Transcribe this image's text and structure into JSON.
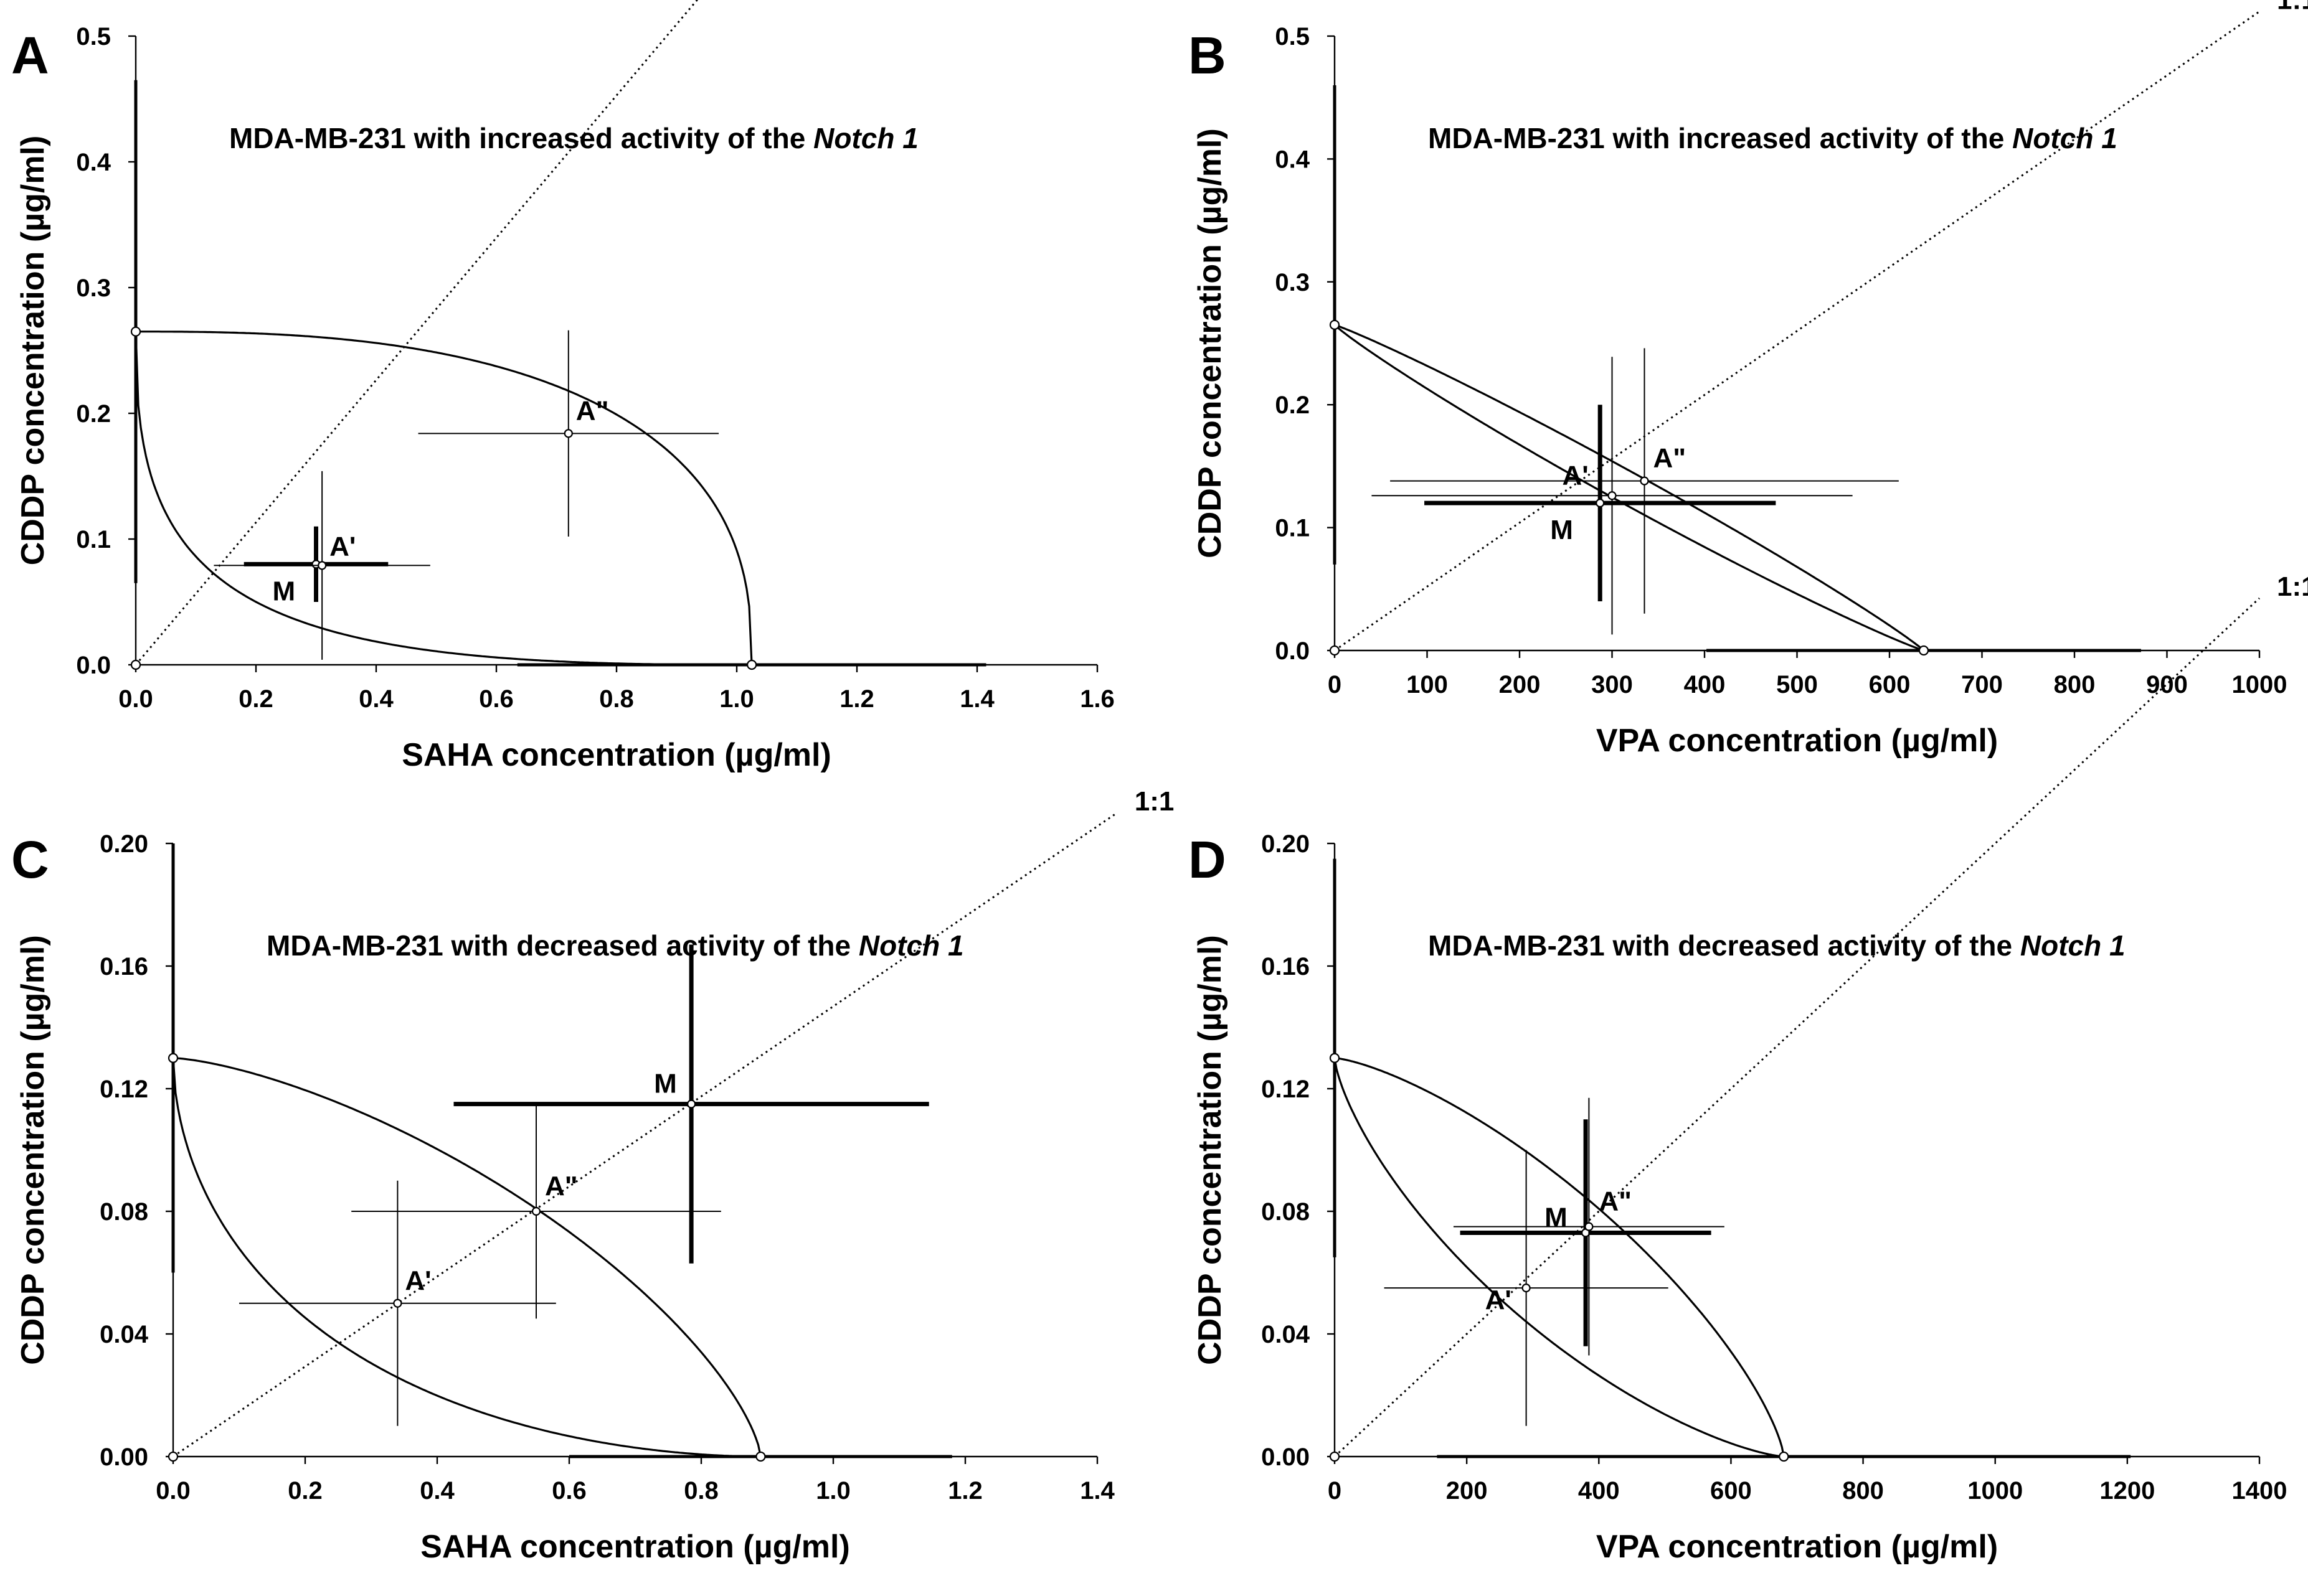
{
  "figure": {
    "ylabel": "CDDP concentration (µg/ml)",
    "ratio_label": "1:1"
  },
  "chart_data": [
    {
      "panel": "A",
      "type": "scatter",
      "title": "MDA-MB-231 with increased activity of the",
      "title_italic": "Notch 1",
      "xlabel": "SAHA concentration (µg/ml)",
      "ylabel": "CDDP concentration (µg/ml)",
      "xlim": [
        0,
        1.6
      ],
      "ylim": [
        0,
        0.5
      ],
      "xticks": [
        "0.0",
        "0.2",
        "0.4",
        "0.6",
        "0.8",
        "1.0",
        "1.2",
        "1.4",
        "1.6"
      ],
      "yticks": [
        "0.0",
        "0.1",
        "0.2",
        "0.3",
        "0.4",
        "0.5"
      ],
      "cddp_ed50": 0.265,
      "cddp_sem": 0.2,
      "drug_ed50": 1.025,
      "drug_sem": 0.39,
      "lower_isobole_curvature": 0.42,
      "upper_isobole_curvature": 2.6,
      "points": [
        {
          "label": "M",
          "x": 0.3,
          "y": 0.08,
          "xerr": 0.12,
          "yerr": 0.03,
          "thick": true
        },
        {
          "label": "A'",
          "x": 0.31,
          "y": 0.079,
          "xerr": 0.18,
          "yerr": 0.075,
          "thick": false
        },
        {
          "label": "A\"",
          "x": 0.72,
          "y": 0.184,
          "xerr": 0.25,
          "yerr": 0.082,
          "thick": false
        }
      ],
      "ratio_line_end": [
        1.59,
        0.9
      ]
    },
    {
      "panel": "B",
      "type": "scatter",
      "title": "MDA-MB-231 with increased activity of the",
      "title_italic": "Notch 1",
      "xlabel": "VPA concentration (µg/ml)",
      "ylabel": "CDDP concentration (µg/ml)",
      "xlim": [
        0,
        1000
      ],
      "ylim": [
        0,
        0.5
      ],
      "xticks": [
        "0",
        "100",
        "200",
        "300",
        "400",
        "500",
        "600",
        "700",
        "800",
        "900",
        "1000"
      ],
      "yticks": [
        "0.0",
        "0.1",
        "0.2",
        "0.3",
        "0.4",
        "0.5"
      ],
      "cddp_ed50": 0.265,
      "cddp_sem": 0.195,
      "drug_ed50": 637,
      "drug_sem": 235,
      "lower_isobole_curvature": 0.92,
      "upper_isobole_curvature": 1.08,
      "points": [
        {
          "label": "M",
          "x": 287,
          "y": 0.12,
          "xerr": 190,
          "yerr": 0.08,
          "thick": true
        },
        {
          "label": "A'",
          "x": 300,
          "y": 0.126,
          "xerr": 260,
          "yerr": 0.113,
          "thick": false
        },
        {
          "label": "A\"",
          "x": 335,
          "y": 0.138,
          "xerr": 275,
          "yerr": 0.108,
          "thick": false
        }
      ],
      "ratio_line_end": [
        1000,
        0.52
      ]
    },
    {
      "panel": "C",
      "type": "scatter",
      "title": "MDA-MB-231 with decreased activity of the",
      "title_italic": "Notch 1",
      "xlabel": "SAHA concentration (µg/ml)",
      "ylabel": "CDDP concentration (µg/ml)",
      "xlim": [
        0,
        1.4
      ],
      "ylim": [
        0,
        0.2
      ],
      "xticks": [
        "0.0",
        "0.2",
        "0.4",
        "0.6",
        "0.8",
        "1.0",
        "1.2",
        "1.4"
      ],
      "yticks": [
        "0.00",
        "0.04",
        "0.08",
        "0.12",
        "0.16",
        "0.20"
      ],
      "cddp_ed50": 0.13,
      "cddp_sem": 0.07,
      "drug_ed50": 0.89,
      "drug_sem": 0.29,
      "lower_isobole_curvature": 0.55,
      "upper_isobole_curvature": 1.45,
      "points": [
        {
          "label": "M",
          "x": 0.785,
          "y": 0.115,
          "xerr": 0.36,
          "yerr": 0.052,
          "thick": true
        },
        {
          "label": "A'",
          "x": 0.34,
          "y": 0.05,
          "xerr": 0.24,
          "yerr": 0.04,
          "thick": false
        },
        {
          "label": "A\"",
          "x": 0.55,
          "y": 0.08,
          "xerr": 0.28,
          "yerr": 0.035,
          "thick": false
        }
      ],
      "ratio_line_end": [
        1.43,
        0.21
      ]
    },
    {
      "panel": "D",
      "type": "scatter",
      "title": "MDA-MB-231 with decreased activity of the",
      "title_italic": "Notch 1",
      "xlabel": "VPA concentration (µg/ml)",
      "ylabel": "CDDP concentration (µg/ml)",
      "xlim": [
        0,
        1400
      ],
      "ylim": [
        0,
        0.2
      ],
      "xticks": [
        "0",
        "200",
        "400",
        "600",
        "800",
        "1000",
        "1200",
        "1400"
      ],
      "yticks": [
        "0.00",
        "0.04",
        "0.08",
        "0.12",
        "0.16",
        "0.20"
      ],
      "cddp_ed50": 0.13,
      "cddp_sem": 0.065,
      "drug_ed50": 680,
      "drug_sem": 525,
      "lower_isobole_curvature": 0.72,
      "upper_isobole_curvature": 1.38,
      "points": [
        {
          "label": "M",
          "x": 380,
          "y": 0.073,
          "xerr": 190,
          "yerr": 0.037,
          "thick": true
        },
        {
          "label": "A'",
          "x": 290,
          "y": 0.055,
          "xerr": 215,
          "yerr": 0.045,
          "thick": false
        },
        {
          "label": "A\"",
          "x": 385,
          "y": 0.075,
          "xerr": 205,
          "yerr": 0.042,
          "thick": false
        }
      ],
      "ratio_line_end": [
        1400,
        0.28
      ]
    }
  ]
}
